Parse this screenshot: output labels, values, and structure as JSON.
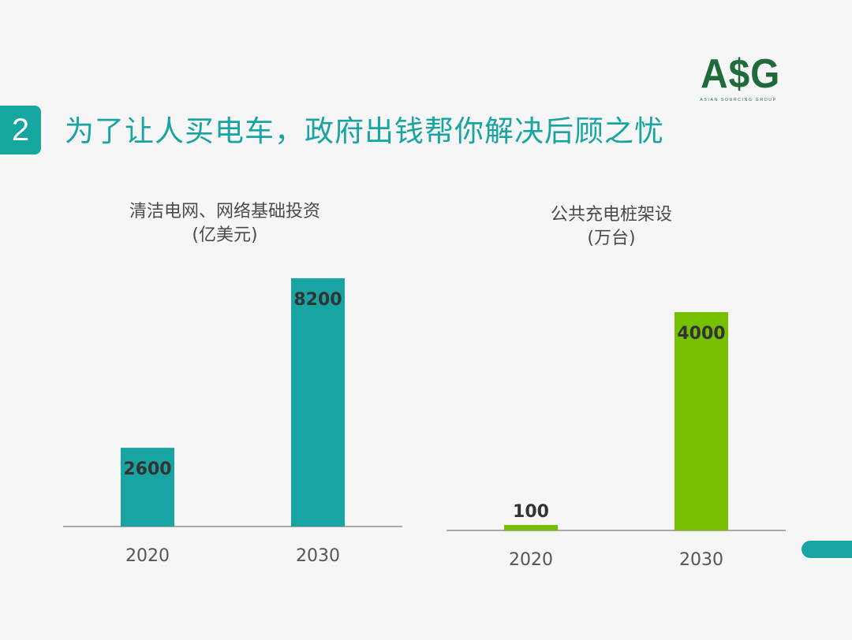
{
  "header": {
    "section_number": "2",
    "title": "为了让人买电车，政府出钱帮你解决后顾之忧"
  },
  "logo": {
    "text": "A$G",
    "tagline": "ASIAN SOURCING GROUP"
  },
  "colors": {
    "teal": "#17a4a2",
    "green": "#77c000",
    "logo_green": "#1f6b3c"
  },
  "chart_data": [
    {
      "type": "bar",
      "title": "清洁电网、网络基础投资",
      "subtitle": "(亿美元)",
      "categories": [
        "2020",
        "2030"
      ],
      "values": [
        2600,
        8200
      ],
      "value_labels": [
        "2600",
        "8200"
      ],
      "ylim": [
        0,
        8200
      ],
      "color": "#17a4a2",
      "grid": false,
      "legend": "none"
    },
    {
      "type": "bar",
      "title": "公共充电桩架设",
      "subtitle": "(万台)",
      "categories": [
        "2020",
        "2030"
      ],
      "values": [
        100,
        4000
      ],
      "value_labels": [
        "100",
        "4000"
      ],
      "ylim": [
        0,
        4000
      ],
      "color": "#77c000",
      "grid": false,
      "legend": "none"
    }
  ]
}
